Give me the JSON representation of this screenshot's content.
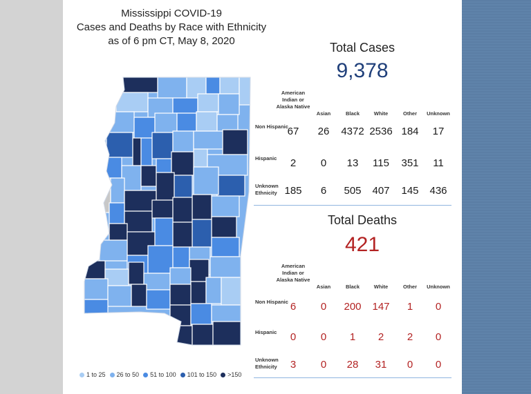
{
  "title": {
    "line1": "Mississippi COVID-19",
    "line2": "Cases and Deaths by Race with Ethnicity",
    "line3": "as of 6 pm CT, May 8, 2020"
  },
  "legend": [
    {
      "label": "1 to 25",
      "color": "#a9cdf4"
    },
    {
      "label": "26 to 50",
      "color": "#7fb2ee"
    },
    {
      "label": "51 to 100",
      "color": "#4a8be3"
    },
    {
      "label": "101 to 150",
      "color": "#2c5fae"
    },
    {
      "label": ">150",
      "color": "#1d2f5c"
    }
  ],
  "columns": [
    "American Indian or Alaska Native",
    "Asian",
    "Black",
    "White",
    "Other",
    "Unknown"
  ],
  "cases": {
    "label": "Total Cases",
    "total": "9,378",
    "color": "#1f3f7a",
    "rows": [
      {
        "label": "Non Hispanic",
        "values": [
          "67",
          "26",
          "4372",
          "2536",
          "184",
          "17"
        ]
      },
      {
        "label": "Hispanic",
        "values": [
          "2",
          "0",
          "13",
          "115",
          "351",
          "11"
        ]
      },
      {
        "label": "Unknown Ethnicity",
        "values": [
          "185",
          "6",
          "505",
          "407",
          "145",
          "436"
        ]
      }
    ]
  },
  "deaths": {
    "label": "Total Deaths",
    "total": "421",
    "color": "#b32222",
    "rows": [
      {
        "label": "Non Hispanic",
        "values": [
          "6",
          "0",
          "200",
          "147",
          "1",
          "0"
        ]
      },
      {
        "label": "Hispanic",
        "values": [
          "0",
          "0",
          "1",
          "2",
          "2",
          "0"
        ]
      },
      {
        "label": "Unknown Ethnicity",
        "values": [
          "3",
          "0",
          "28",
          "31",
          "0",
          "0"
        ]
      }
    ]
  }
}
